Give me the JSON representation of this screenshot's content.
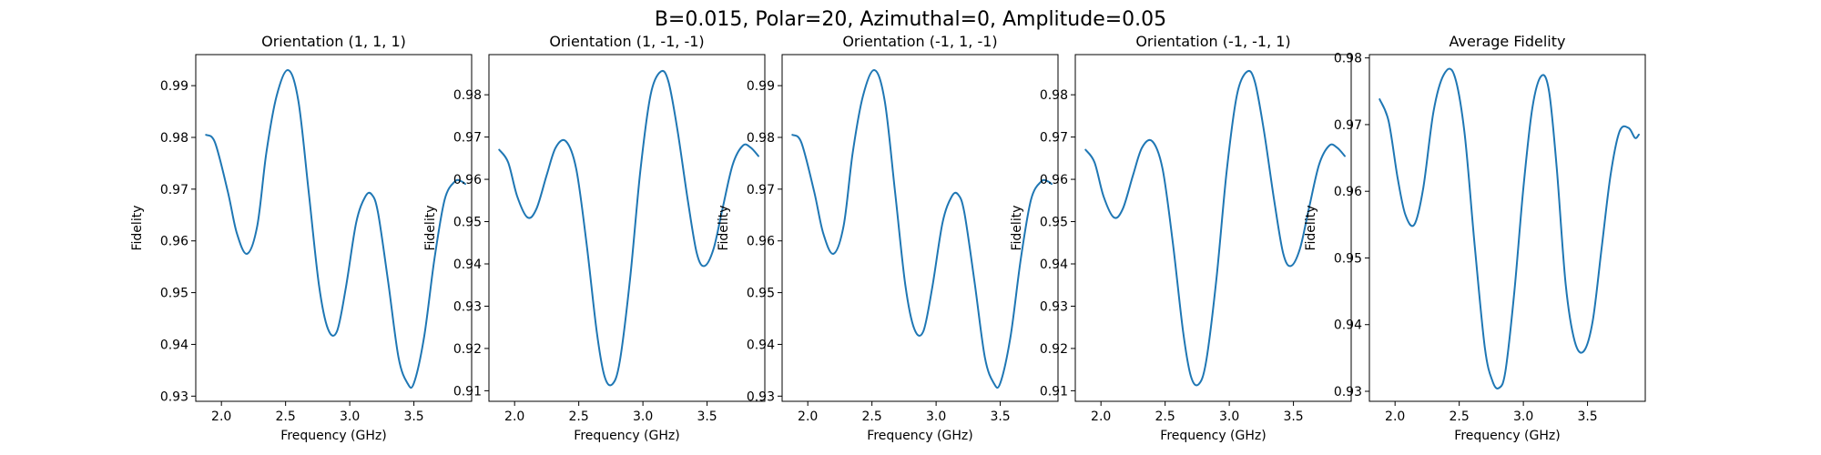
{
  "figure": {
    "suptitle": "B=0.015, Polar=20, Azimuthal=0, Amplitude=0.05",
    "line_color": "#1f77b4"
  },
  "chart_data": [
    {
      "type": "line",
      "title": "Orientation (1, 1, 1)",
      "xlabel": "Frequency (GHz)",
      "ylabel": "Fidelity",
      "xlim": [
        1.8,
        3.95
      ],
      "ylim": [
        0.929,
        0.996
      ],
      "xticks": [
        2.0,
        2.5,
        3.0,
        3.5
      ],
      "xtick_labels": [
        "2.0",
        "2.5",
        "3.0",
        "3.5"
      ],
      "yticks": [
        0.93,
        0.94,
        0.95,
        0.96,
        0.97,
        0.98,
        0.99
      ],
      "ytick_labels": [
        "0.93",
        "0.94",
        "0.95",
        "0.96",
        "0.97",
        "0.98",
        "0.99"
      ],
      "grid": false,
      "series": [
        {
          "x": [
            1.88,
            1.95,
            2.05,
            2.12,
            2.2,
            2.28,
            2.35,
            2.43,
            2.52,
            2.6,
            2.68,
            2.76,
            2.83,
            2.9,
            2.97,
            3.05,
            3.12,
            3.17,
            3.22,
            3.3,
            3.38,
            3.45,
            3.5,
            3.58,
            3.66,
            3.74,
            3.82,
            3.87,
            3.9
          ],
          "y": [
            0.9805,
            0.979,
            0.9695,
            0.9615,
            0.9575,
            0.963,
            0.977,
            0.988,
            0.993,
            0.987,
            0.9695,
            0.9515,
            0.943,
            0.9425,
            0.951,
            0.9635,
            0.9685,
            0.969,
            0.9655,
            0.952,
            0.9375,
            0.9325,
            0.9325,
            0.9415,
            0.9565,
            0.968,
            0.9715,
            0.9715,
            0.971
          ]
        }
      ]
    },
    {
      "type": "line",
      "title": "Orientation (1, -1, -1)",
      "xlabel": "Frequency (GHz)",
      "ylabel": "Fidelity",
      "xlim": [
        1.8,
        3.95
      ],
      "ylim": [
        0.9075,
        0.9895
      ],
      "xticks": [
        2.0,
        2.5,
        3.0,
        3.5
      ],
      "xtick_labels": [
        "2.0",
        "2.5",
        "3.0",
        "3.5"
      ],
      "yticks": [
        0.91,
        0.92,
        0.93,
        0.94,
        0.95,
        0.96,
        0.97,
        0.98
      ],
      "ytick_labels": [
        "0.91",
        "0.92",
        "0.93",
        "0.94",
        "0.95",
        "0.96",
        "0.97",
        "0.98"
      ],
      "grid": false,
      "series": [
        {
          "x": [
            1.88,
            1.95,
            2.02,
            2.1,
            2.17,
            2.25,
            2.32,
            2.4,
            2.48,
            2.56,
            2.64,
            2.7,
            2.76,
            2.82,
            2.9,
            2.98,
            3.06,
            3.14,
            3.2,
            3.27,
            3.35,
            3.42,
            3.48,
            3.55,
            3.62,
            3.7,
            3.78,
            3.84,
            3.9
          ],
          "y": [
            0.967,
            0.964,
            0.956,
            0.951,
            0.953,
            0.961,
            0.9675,
            0.969,
            0.9625,
            0.945,
            0.924,
            0.9135,
            0.9115,
            0.917,
            0.9365,
            0.962,
            0.98,
            0.9855,
            0.983,
            0.9715,
            0.955,
            0.9425,
            0.9395,
            0.9435,
            0.953,
            0.9635,
            0.968,
            0.9675,
            0.9655
          ]
        }
      ]
    },
    {
      "type": "line",
      "title": "Orientation (-1, 1, -1)",
      "xlabel": "Frequency (GHz)",
      "ylabel": "Fidelity",
      "xlim": [
        1.8,
        3.95
      ],
      "ylim": [
        0.929,
        0.996
      ],
      "xticks": [
        2.0,
        2.5,
        3.0,
        3.5
      ],
      "xtick_labels": [
        "2.0",
        "2.5",
        "3.0",
        "3.5"
      ],
      "yticks": [
        0.93,
        0.94,
        0.95,
        0.96,
        0.97,
        0.98,
        0.99
      ],
      "ytick_labels": [
        "0.93",
        "0.94",
        "0.95",
        "0.96",
        "0.97",
        "0.98",
        "0.99"
      ],
      "grid": false,
      "series": [
        {
          "x": [
            1.88,
            1.95,
            2.05,
            2.12,
            2.2,
            2.28,
            2.35,
            2.43,
            2.52,
            2.6,
            2.68,
            2.76,
            2.83,
            2.9,
            2.97,
            3.05,
            3.12,
            3.17,
            3.22,
            3.3,
            3.38,
            3.45,
            3.5,
            3.58,
            3.66,
            3.74,
            3.82,
            3.87,
            3.9
          ],
          "y": [
            0.9805,
            0.979,
            0.9695,
            0.9615,
            0.9575,
            0.963,
            0.977,
            0.988,
            0.993,
            0.987,
            0.9695,
            0.9515,
            0.943,
            0.9425,
            0.951,
            0.9635,
            0.9685,
            0.969,
            0.9655,
            0.952,
            0.9375,
            0.9325,
            0.9325,
            0.9415,
            0.9565,
            0.968,
            0.9715,
            0.9715,
            0.971
          ]
        }
      ]
    },
    {
      "type": "line",
      "title": "Orientation (-1, -1, 1)",
      "xlabel": "Frequency (GHz)",
      "ylabel": "Fidelity",
      "xlim": [
        1.8,
        3.95
      ],
      "ylim": [
        0.9075,
        0.9895
      ],
      "xticks": [
        2.0,
        2.5,
        3.0,
        3.5
      ],
      "xtick_labels": [
        "2.0",
        "2.5",
        "3.0",
        "3.5"
      ],
      "yticks": [
        0.91,
        0.92,
        0.93,
        0.94,
        0.95,
        0.96,
        0.97,
        0.98
      ],
      "ytick_labels": [
        "0.91",
        "0.92",
        "0.93",
        "0.94",
        "0.95",
        "0.96",
        "0.97",
        "0.98"
      ],
      "grid": false,
      "series": [
        {
          "x": [
            1.88,
            1.95,
            2.02,
            2.1,
            2.17,
            2.25,
            2.32,
            2.4,
            2.48,
            2.56,
            2.64,
            2.7,
            2.76,
            2.82,
            2.9,
            2.98,
            3.06,
            3.14,
            3.2,
            3.27,
            3.35,
            3.42,
            3.48,
            3.55,
            3.62,
            3.7,
            3.78,
            3.84,
            3.9
          ],
          "y": [
            0.967,
            0.964,
            0.956,
            0.951,
            0.953,
            0.961,
            0.9675,
            0.969,
            0.9625,
            0.945,
            0.924,
            0.9135,
            0.9115,
            0.917,
            0.9365,
            0.962,
            0.98,
            0.9855,
            0.983,
            0.9715,
            0.955,
            0.9425,
            0.9395,
            0.9435,
            0.953,
            0.9635,
            0.968,
            0.9675,
            0.9655
          ]
        }
      ]
    },
    {
      "type": "line",
      "title": "Average Fidelity",
      "xlabel": "Frequency (GHz)",
      "ylabel": "Fidelity",
      "xlim": [
        1.8,
        3.95
      ],
      "ylim": [
        0.9285,
        0.9805
      ],
      "xticks": [
        2.0,
        2.5,
        3.0,
        3.5
      ],
      "xtick_labels": [
        "2.0",
        "2.5",
        "3.0",
        "3.5"
      ],
      "yticks": [
        0.93,
        0.94,
        0.95,
        0.96,
        0.97,
        0.98
      ],
      "ytick_labels": [
        "0.93",
        "0.94",
        "0.95",
        "0.96",
        "0.97",
        "0.98"
      ],
      "grid": false,
      "series": [
        {
          "x": [
            1.88,
            1.95,
            2.02,
            2.08,
            2.15,
            2.22,
            2.3,
            2.38,
            2.46,
            2.54,
            2.62,
            2.7,
            2.76,
            2.81,
            2.86,
            2.93,
            3.0,
            3.07,
            3.14,
            3.2,
            3.26,
            3.33,
            3.4,
            3.47,
            3.54,
            3.61,
            3.68,
            3.75,
            3.82,
            3.87,
            3.9
          ],
          "y": [
            0.9738,
            0.9705,
            0.962,
            0.9565,
            0.955,
            0.9605,
            0.972,
            0.9775,
            0.9775,
            0.969,
            0.952,
            0.9365,
            0.9315,
            0.9305,
            0.933,
            0.945,
            0.9605,
            0.9725,
            0.9773,
            0.975,
            0.9635,
            0.946,
            0.9375,
            0.936,
            0.9405,
            0.9515,
            0.9625,
            0.969,
            0.9695,
            0.968,
            0.9685
          ]
        }
      ]
    }
  ]
}
